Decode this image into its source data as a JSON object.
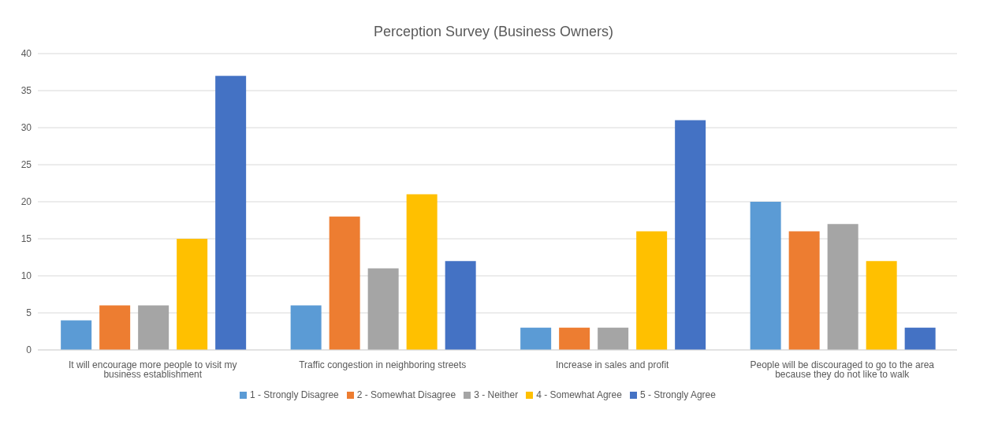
{
  "chart_data": {
    "type": "bar",
    "title": "Perception Survey (Business Owners)",
    "categories": [
      "It will encourage more people to visit my business establishment",
      "Traffic congestion in neighboring streets",
      "Increase in sales and profit",
      "People will be discouraged to go to the area because they do not like to walk"
    ],
    "series": [
      {
        "name": "1 - Strongly Disagree",
        "color": "#5b9bd5",
        "values": [
          4,
          6,
          3,
          20
        ]
      },
      {
        "name": "2 - Somewhat Disagree",
        "color": "#ed7d31",
        "values": [
          6,
          18,
          3,
          16
        ]
      },
      {
        "name": "3 - Neither",
        "color": "#a5a5a5",
        "values": [
          6,
          11,
          3,
          17
        ]
      },
      {
        "name": "4 - Somewhat Agree",
        "color": "#ffc000",
        "values": [
          15,
          21,
          16,
          12
        ]
      },
      {
        "name": "5 - Strongly Agree",
        "color": "#4472c4",
        "values": [
          37,
          12,
          31,
          3
        ]
      }
    ],
    "ylim": [
      0,
      40
    ],
    "yticks": [
      0,
      5,
      10,
      15,
      20,
      25,
      30,
      35,
      40
    ],
    "grid": "y",
    "legend": "bottom"
  }
}
